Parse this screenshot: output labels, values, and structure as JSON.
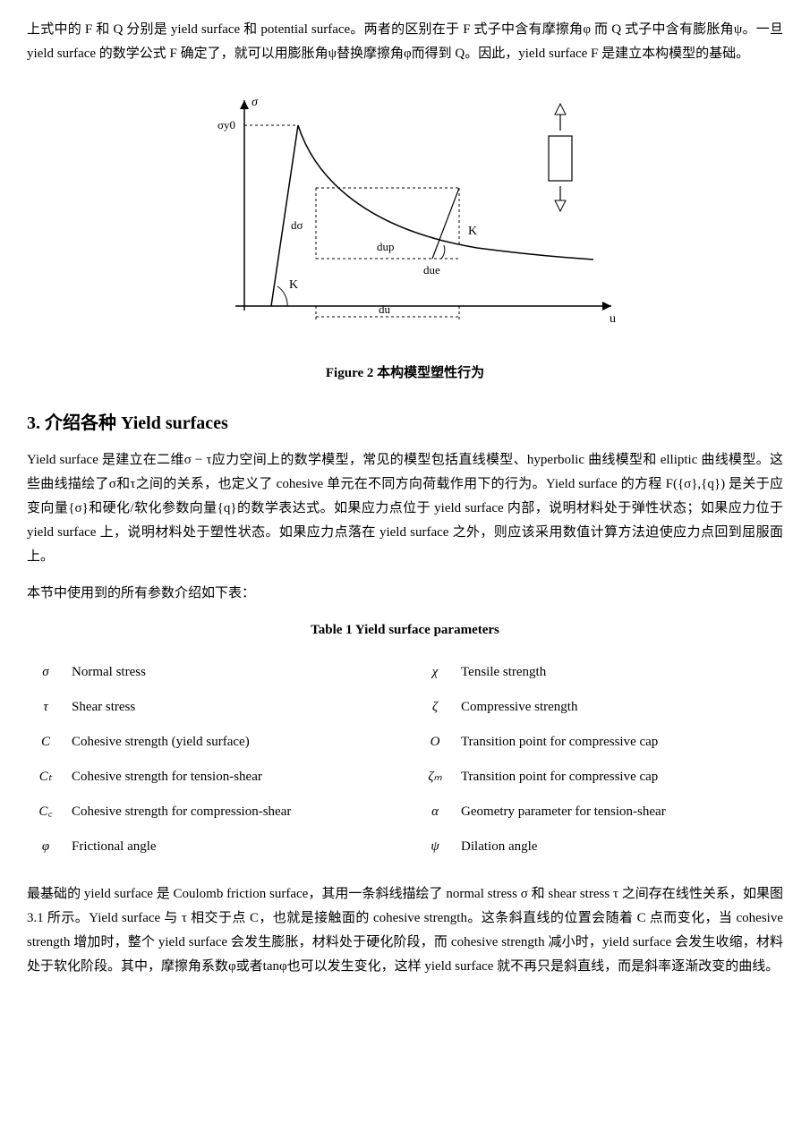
{
  "para1": "上式中的 F 和 Q 分别是 yield surface 和 potential surface。两者的区别在于 F 式子中含有摩擦角φ 而 Q 式子中含有膨胀角ψ。一旦 yield surface 的数学公式 F 确定了，就可以用膨胀角ψ替换摩擦角φ而得到 Q。因此，yield surface F 是建立本构模型的基础。",
  "figure": {
    "caption": "Figure 2 本构模型塑性行为",
    "labels": {
      "sigma": "σ",
      "sigma_y0": "σy0",
      "dsigma": "dσ",
      "dup": "dup",
      "due": "due",
      "du": "du",
      "u": "u",
      "K1": "K",
      "K2": "K"
    },
    "colors": {
      "stroke": "#000000",
      "bg": "#ffffff",
      "dash": "#000000"
    }
  },
  "heading3": "3. 介绍各种 Yield surfaces",
  "para2": "Yield surface 是建立在二维σ − τ应力空间上的数学模型，常见的模型包括直线模型、hyperbolic 曲线模型和 elliptic 曲线模型。这些曲线描绘了σ和τ之间的关系，也定义了 cohesive 单元在不同方向荷载作用下的行为。Yield surface 的方程 F({σ},{q}) 是关于应变向量{σ}和硬化/软化参数向量{q}的数学表达式。如果应力点位于 yield surface 内部，说明材料处于弹性状态；如果应力位于 yield surface 上，说明材料处于塑性状态。如果应力点落在 yield surface 之外，则应该采用数值计算方法迫使应力点回到屈服面上。",
  "para3": "本节中使用到的所有参数介绍如下表：",
  "table": {
    "caption": "Table 1 Yield surface parameters",
    "rows": [
      {
        "s1": "σ",
        "d1": "Normal stress",
        "s2": "χ",
        "d2": "Tensile strength"
      },
      {
        "s1": "τ",
        "d1": "Shear stress",
        "s2": "ζ",
        "d2": "Compressive strength"
      },
      {
        "s1": "C",
        "d1": "Cohesive strength (yield surface)",
        "s2": "O",
        "d2": "Transition point for compressive cap"
      },
      {
        "s1": "Cₜ",
        "d1": "Cohesive strength for tension-shear",
        "s2": "ζₘ",
        "d2": "Transition point for compressive cap"
      },
      {
        "s1": "C꜀",
        "d1": "Cohesive strength for compression-shear",
        "s2": "α",
        "d2": "Geometry parameter for tension-shear"
      },
      {
        "s1": "φ",
        "d1": "Frictional angle",
        "s2": "ψ",
        "d2": "Dilation angle"
      }
    ]
  },
  "para4": "最基础的 yield surface 是 Coulomb friction surface，其用一条斜线描绘了 normal stress σ 和 shear stress τ 之间存在线性关系，如果图 3.1 所示。Yield surface 与 τ 相交于点 C，也就是接触面的 cohesive strength。这条斜直线的位置会随着 C 点而变化，当 cohesive strength 增加时，整个 yield surface 会发生膨胀，材料处于硬化阶段，而 cohesive strength 减小时，yield surface 会发生收缩，材料处于软化阶段。其中，摩擦角系数φ或者tanφ也可以发生变化，这样 yield surface 就不再只是斜直线，而是斜率逐渐改变的曲线。"
}
